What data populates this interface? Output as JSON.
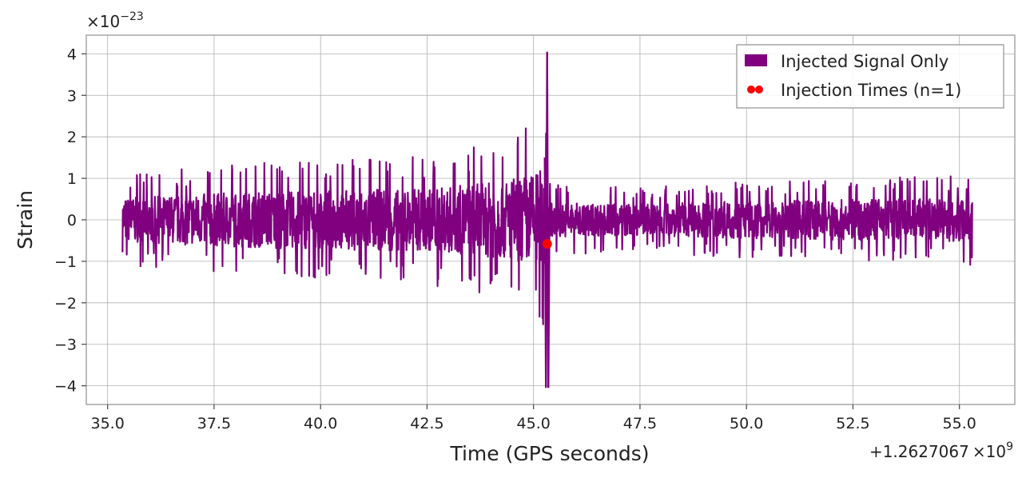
{
  "chart_data": {
    "type": "line",
    "xlabel": "Time (GPS seconds)",
    "ylabel": "Strain",
    "x_offset_text": "+1.2627067",
    "x_offset_mult": "×10",
    "x_offset_exp": "9",
    "y_scale_text": "×10",
    "y_scale_exp": "−23",
    "xlim": [
      34.5,
      56.3
    ],
    "ylim": [
      -4.45,
      4.45
    ],
    "grid": true,
    "legend_position": "top-right",
    "x_ticks": [
      35.0,
      37.5,
      40.0,
      42.5,
      45.0,
      47.5,
      50.0,
      52.5,
      55.0
    ],
    "x_tick_labels": [
      "35.0",
      "37.5",
      "40.0",
      "42.5",
      "45.0",
      "47.5",
      "50.0",
      "52.5",
      "55.0"
    ],
    "y_ticks": [
      4,
      3,
      2,
      1,
      0,
      -1,
      -2,
      -3,
      -4
    ],
    "y_tick_labels": [
      "4",
      "3",
      "2",
      "1",
      "0",
      "−1",
      "−2",
      "−3",
      "−4"
    ],
    "series": [
      {
        "name": "Injected Signal Only",
        "kind": "line",
        "color": "#800080",
        "x_start": 35.35,
        "x_end": 55.3,
        "envelope": [
          {
            "x": 35.35,
            "amp": 0.7
          },
          {
            "x": 37.5,
            "amp": 0.85
          },
          {
            "x": 40.0,
            "amp": 0.95
          },
          {
            "x": 42.5,
            "amp": 1.0
          },
          {
            "x": 44.0,
            "amp": 1.2
          },
          {
            "x": 45.0,
            "amp": 1.5
          },
          {
            "x": 45.3,
            "amp": 1.75
          },
          {
            "x": 45.4,
            "amp": 0.55
          },
          {
            "x": 47.5,
            "amp": 0.5
          },
          {
            "x": 50.0,
            "amp": 0.6
          },
          {
            "x": 52.5,
            "amp": 0.65
          },
          {
            "x": 55.3,
            "amp": 0.7
          }
        ],
        "spike": {
          "x": 45.32,
          "max": 4.05,
          "min": -4.05
        }
      },
      {
        "name": "Injection Times (n=1)",
        "kind": "scatter",
        "color": "#ff0000",
        "points": [
          {
            "x": 45.32,
            "y": -0.58
          }
        ]
      }
    ]
  }
}
